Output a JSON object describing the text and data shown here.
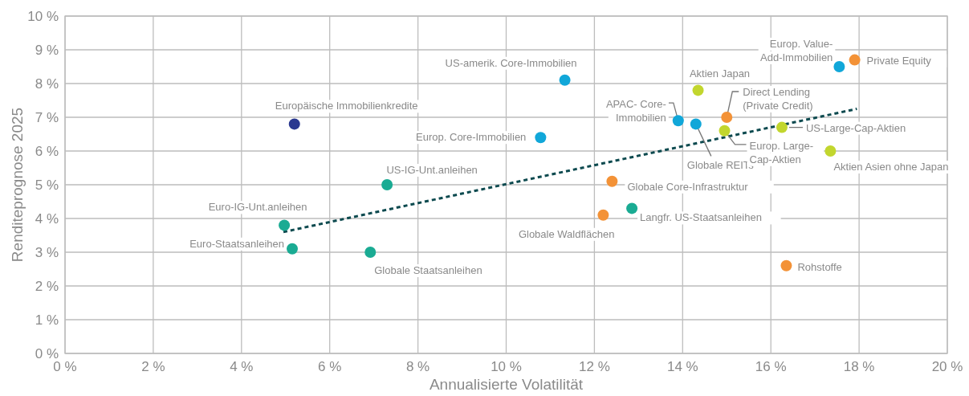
{
  "chart_data": {
    "type": "scatter",
    "xlabel": "Annualisierte Volatilität",
    "ylabel": "Renditeprognose 2025",
    "xlim": [
      0,
      20
    ],
    "ylim": [
      0,
      10
    ],
    "xticks": [
      {
        "value": 0,
        "label": "0 %"
      },
      {
        "value": 2,
        "label": "2 %"
      },
      {
        "value": 4,
        "label": "4 %"
      },
      {
        "value": 6,
        "label": "6 %"
      },
      {
        "value": 8,
        "label": "8 %"
      },
      {
        "value": 10,
        "label": "10 %"
      },
      {
        "value": 12,
        "label": "12 %"
      },
      {
        "value": 14,
        "label": "14 %"
      },
      {
        "value": 16,
        "label": "16 %"
      },
      {
        "value": 18,
        "label": "18 %"
      },
      {
        "value": 20,
        "label": "20 %"
      }
    ],
    "yticks": [
      {
        "value": 0,
        "label": "0 %"
      },
      {
        "value": 1,
        "label": "1 %"
      },
      {
        "value": 2,
        "label": "2 %"
      },
      {
        "value": 3,
        "label": "3 %"
      },
      {
        "value": 4,
        "label": "4 %"
      },
      {
        "value": 5,
        "label": "5 %"
      },
      {
        "value": 6,
        "label": "6 %"
      },
      {
        "value": 7,
        "label": "7 %"
      },
      {
        "value": 8,
        "label": "8 %"
      },
      {
        "value": 9,
        "label": "9 %"
      },
      {
        "value": 10,
        "label": "10 %"
      }
    ],
    "grid": true,
    "marker": "circle",
    "series": [
      {
        "color": "#2b3990",
        "x": [
          5.2
        ],
        "values": [
          6.8
        ]
      },
      {
        "color": "#1aab93",
        "x": [
          7.3,
          4.97,
          5.15,
          6.92,
          12.85
        ],
        "values": [
          5.0,
          3.8,
          3.1,
          3.0,
          4.3
        ]
      },
      {
        "color": "#11a7d9",
        "x": [
          11.33,
          10.78,
          13.9,
          14.3,
          17.55
        ],
        "values": [
          8.1,
          6.4,
          6.9,
          6.8,
          8.5
        ]
      },
      {
        "color": "#c2d62e",
        "x": [
          14.35,
          14.95,
          16.25,
          17.35
        ],
        "values": [
          7.8,
          6.6,
          6.7,
          6.0
        ]
      },
      {
        "color": "#f39237",
        "x": [
          15.0,
          17.9,
          12.4,
          12.2,
          16.35
        ],
        "values": [
          7.0,
          8.7,
          5.1,
          4.1,
          2.6
        ]
      },
      {
        "type": "line",
        "color": "#0d4a4f",
        "line_style": "dashed",
        "marker": "none",
        "x": [
          4.95,
          17.95
        ],
        "values": [
          3.6,
          7.25
        ]
      }
    ],
    "annotations": [
      {
        "text": "Europäische Immobilienkredite",
        "x": 5.2,
        "y": 6.8
      },
      {
        "text": "US-IG-Unt.anleihen",
        "x": 7.3,
        "y": 5.0
      },
      {
        "text": "Euro-IG-Unt.anleihen",
        "x": 4.97,
        "y": 3.8
      },
      {
        "text": "Euro-Staatsanleihen",
        "x": 5.15,
        "y": 3.1
      },
      {
        "text": "Globale Staatsanleihen",
        "x": 6.92,
        "y": 3.0
      },
      {
        "text": "US-amerik. Core-Immobilien",
        "x": 11.33,
        "y": 8.1
      },
      {
        "text": "Europ. Core-Immobilien",
        "x": 10.78,
        "y": 6.4
      },
      {
        "text": "Aktien Japan",
        "x": 14.35,
        "y": 7.8
      },
      {
        "text": "APAC- Core-\nImmobilien",
        "x": 13.9,
        "y": 6.9
      },
      {
        "text": "Globale REITs",
        "x": 14.3,
        "y": 6.8
      },
      {
        "text": "Direct Lending\n(Private Credit)",
        "x": 15.0,
        "y": 7.0
      },
      {
        "text": "Europ. Large-\nCap-Aktien",
        "x": 14.95,
        "y": 6.6
      },
      {
        "text": "US-Large-Cap-Aktien",
        "x": 16.25,
        "y": 6.7
      },
      {
        "text": "Aktien Asien ohne Japan",
        "x": 17.35,
        "y": 6.0
      },
      {
        "text": "Europ. Value-\nAdd-Immobilien",
        "x": 17.55,
        "y": 8.5
      },
      {
        "text": "Private Equity",
        "x": 17.9,
        "y": 8.7
      },
      {
        "text": "Globale Core-Infrastruktur",
        "x": 12.4,
        "y": 5.1
      },
      {
        "text": "Langfr. US-Staatsanleihen",
        "x": 12.85,
        "y": 4.3
      },
      {
        "text": "Globale Waldflächen",
        "x": 12.2,
        "y": 4.1
      },
      {
        "text": "Rohstoffe",
        "x": 16.35,
        "y": 2.6
      }
    ]
  }
}
